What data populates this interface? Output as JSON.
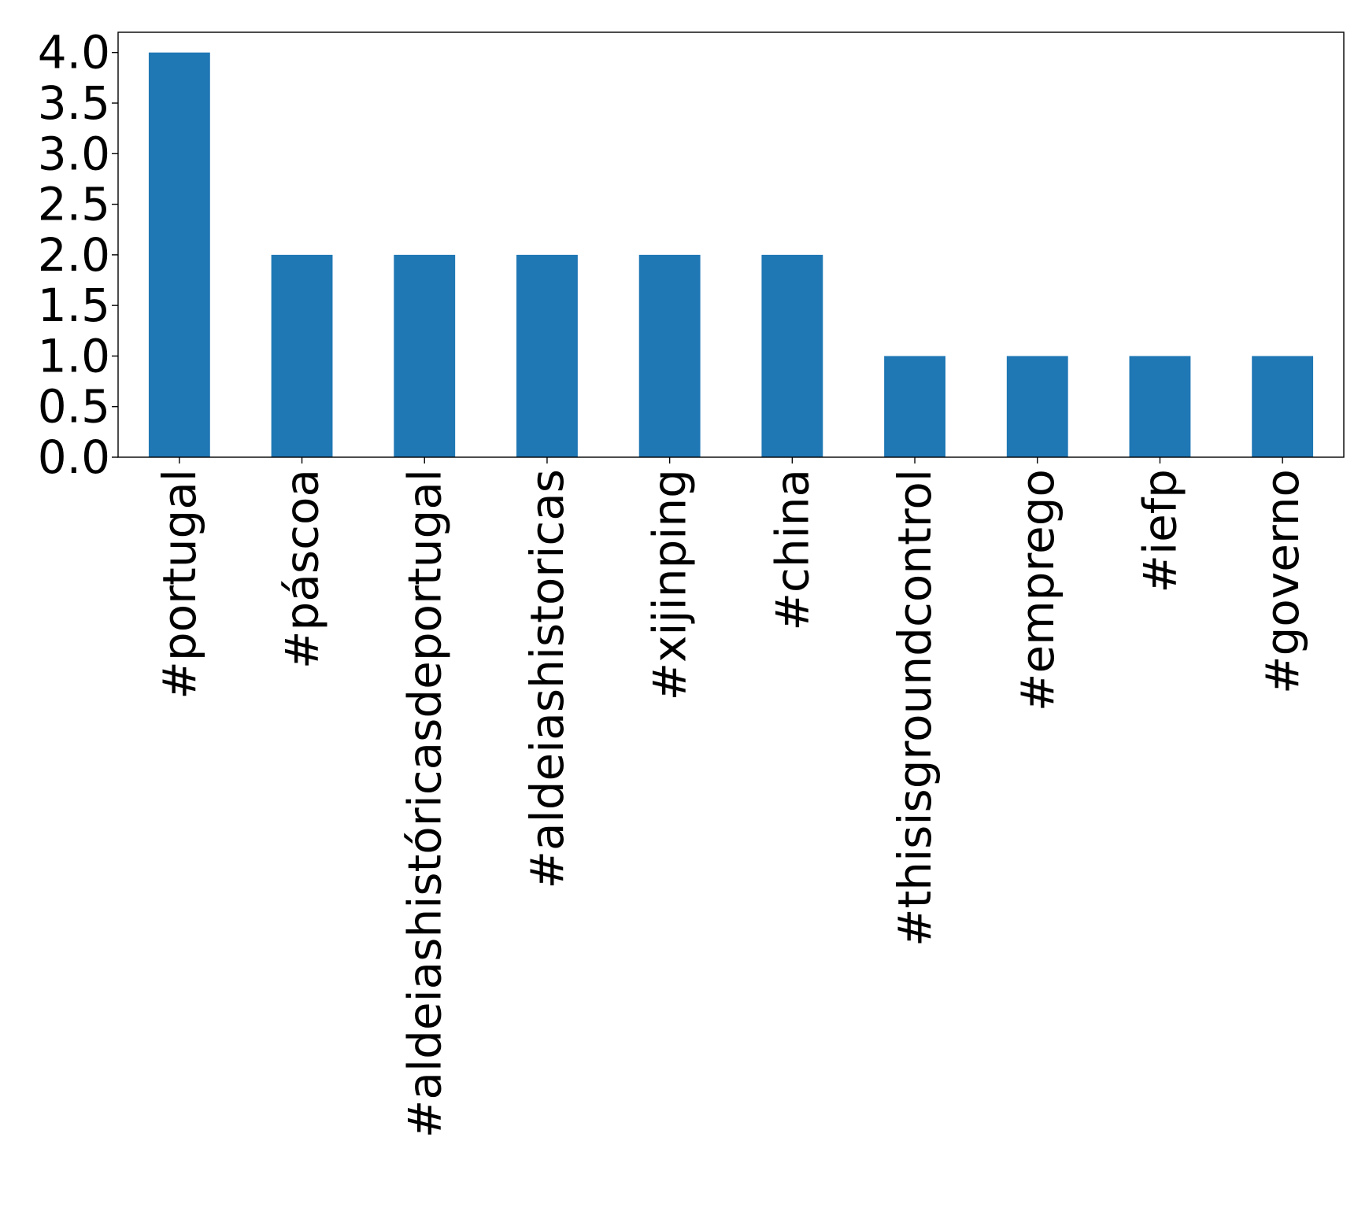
{
  "chart_data": {
    "type": "bar",
    "title": "",
    "xlabel": "",
    "ylabel": "",
    "categories": [
      "#portugal",
      "#páscoa",
      "#aldeiashistóricasdeportugal",
      "#aldeiashistoricas",
      "#xijinping",
      "#china",
      "#thisisgroundcontrol",
      "#emprego",
      "#iefp",
      "#governo"
    ],
    "values": [
      4,
      2,
      2,
      2,
      2,
      2,
      1,
      1,
      1,
      1
    ],
    "ylim": [
      0,
      4.2
    ],
    "yticks": [
      "0.0",
      "0.5",
      "1.0",
      "1.5",
      "2.0",
      "2.5",
      "3.0",
      "3.5",
      "4.0"
    ],
    "bar_color": "#1f77b4",
    "grid": false,
    "legend": "none"
  }
}
